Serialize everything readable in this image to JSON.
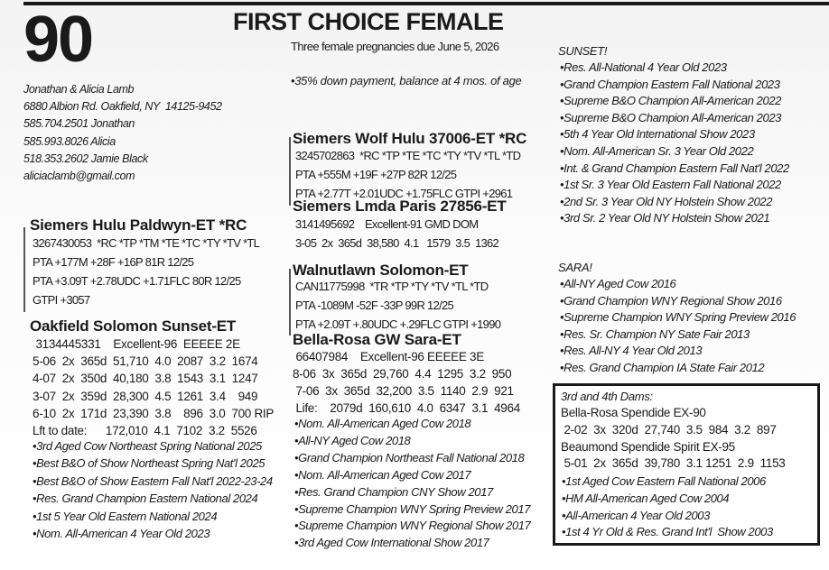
{
  "lot_number": "90",
  "title": "FIRST CHOICE FEMALE",
  "subtitle": "Three female pregnancies due June 5, 2026",
  "terms": "•35% down payment, balance at 4 mos. of age",
  "consignor": {
    "lines": [
      "Jonathan & Alicia Lamb",
      "6880 Albion Rd. Oakfield, NY  14125-9452",
      "585.704.2501 Jonathan",
      "585.993.8026 Alicia",
      "518.353.2602 Jamie Black",
      "aliciaclamb@gmail.com"
    ]
  },
  "sire": {
    "heading": "Siemers Hulu Paldwyn-ET *RC",
    "lines": [
      "3267430053  *RC *TP *TM *TE *TC *TY *TV *TL",
      "PTA +177M +28F +16P 81R 12/25",
      "PTA +3.09T +2.78UDC +1.71FLC 80R 12/25",
      "GTPI +3057"
    ]
  },
  "dam": {
    "heading": "Oakfield Solomon Sunset-ET",
    "lines": [
      " 3134445331    Excellent-96  EEEEE 2E",
      "5-06  2x  365d  51,710  4.0  2087  3.2  1674",
      "4-07  2x  350d  40,180  3.8  1543  3.1  1247",
      "3-07  2x  359d  28,300  4.5  1261  3.4    949",
      "6-10  2x  171d  23,390  3.8    896  3.0  700 RIP",
      "Lft to date:      172,010  4.1  7102  3.2  5526"
    ],
    "awards": [
      "•3rd Aged Cow Northeast Spring National 2025",
      "•Best B&O of Show Northeast Spring Nat'l 2025",
      "•Best B&O of Show Eastern Fall Nat'l 2022-23-24",
      "•Res. Grand Champion Eastern National 2024",
      "•1st 5 Year Old Eastern National 2024",
      "•Nom. All-American 4 Year Old 2023"
    ]
  },
  "service_sire": {
    "heading": "Siemers Wolf Hulu 37006-ET *RC",
    "lines": [
      "3245702863  *RC *TP *TE *TC *TY *TV *TL *TD",
      "PTA +555M +19F +27P 82R 12/25",
      "PTA +2.77T +2.01UDC +1.75FLC GTPI +2961"
    ]
  },
  "service_sire_dam": {
    "heading": "Siemers Lmda Paris 27856-ET",
    "lines": [
      "3141495692    Excellent-91 GMD DOM",
      "3-05  2x  365d  38,580  4.1   1579  3.5  1362"
    ]
  },
  "maternal_grandsire": {
    "heading": "Walnutlawn Solomon-ET",
    "lines": [
      "CAN11775998  *TR *TP *TY *TV *TL *TD",
      "PTA -1089M -52F -33P 99R 12/25",
      "PTA +2.09T +.80UDC +.29FLC GTPI +1990"
    ]
  },
  "granddam": {
    "heading": "Bella-Rosa GW Sara-ET",
    "lines": [
      " 66407984    Excellent-96 EEEEE 3E",
      "8-06  3x  365d  29,760  4.4  1295  3.2  950",
      " 7-06  3x  365d  32,200  3.5  1140  2.9  921",
      " Life:    2079d  160,610  4.0  6347  3.1  4964"
    ],
    "awards": [
      "•Nom. All-American Aged Cow 2018",
      "•All-NY Aged Cow 2018",
      "•Grand Champion Northeast Fall National 2018",
      "•Nom. All-American Aged Cow 2017",
      "•Res. Grand Champion CNY Show 2017",
      "•Supreme Champion WNY Spring Preview 2017",
      "•Supreme Champion WNY Regional Show 2017",
      "•3rd Aged Cow International Show 2017"
    ]
  },
  "sunset": {
    "label": "SUNSET!",
    "awards": [
      "•Res. All-National 4 Year Old 2023",
      "•Grand Champion Eastern Fall National 2023",
      "•Supreme B&O Champion All-American 2022",
      "•Supreme B&O Champion All-American 2023",
      "•5th 4 Year Old International Show 2023",
      "•Nom. All-American Sr. 3 Year Old 2022",
      "•Int. & Grand Champion Eastern Fall Nat'l 2022",
      "•1st Sr. 3 Year Old Eastern Fall National 2022",
      "•2nd Sr. 3 Year Old NY Holstein Show 2022",
      "•3rd Sr. 2 Year Old NY Holstein Show 2021"
    ]
  },
  "sara": {
    "label": "SARA!",
    "awards": [
      "•All-NY Aged Cow 2016",
      "•Grand Champion WNY Regional Show 2016",
      "•Supreme Champion WNY Spring Preview 2016",
      "•Res. Sr. Champion NY Sate Fair 2013",
      "•Res. All-NY 4 Year Old 2013",
      "•Res. Grand Champion IA State Fair 2012"
    ]
  },
  "dams_box": {
    "label": "3rd and 4th Dams:",
    "lines": [
      "Bella-Rosa Spendide EX-90",
      " 2-02  3x  320d  27,740  3.5  984  3.2  897",
      "Beaumond Spendide Spirit EX-95",
      " 5-01  2x  365d  39,780  3.1 1251  2.9  1153"
    ],
    "awards": [
      "•1st Aged Cow Eastern Fall National 2006",
      "•HM All-American Aged Cow 2004",
      "•All-American 4 Year Old 2003",
      "•1st 4 Yr Old & Res. Grand Int'l  Show 2003"
    ]
  }
}
